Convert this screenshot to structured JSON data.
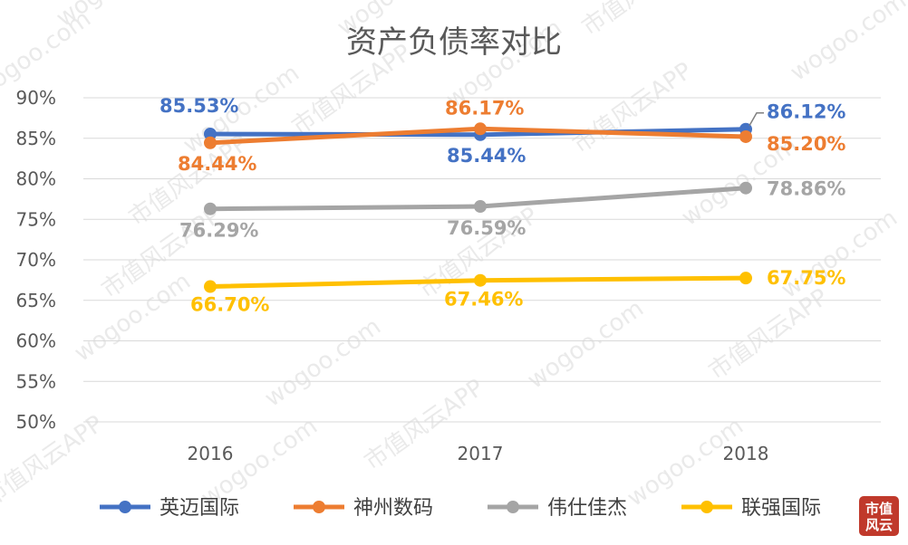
{
  "chart_data": {
    "type": "line",
    "title": "资产负债率对比",
    "categories": [
      "2016",
      "2017",
      "2018"
    ],
    "y_ticks": [
      "50%",
      "55%",
      "60%",
      "65%",
      "70%",
      "75%",
      "80%",
      "85%",
      "90%"
    ],
    "ylim": [
      50,
      90
    ],
    "unit": "%",
    "grid": true,
    "legend_position": "bottom",
    "series": [
      {
        "name": "英迈国际",
        "color": "#4472C4",
        "values": [
          85.53,
          85.44,
          86.12
        ],
        "labels": [
          "85.53%",
          "85.44%",
          "86.12%"
        ]
      },
      {
        "name": "神州数码",
        "color": "#ED7D31",
        "values": [
          84.44,
          86.17,
          85.2
        ],
        "labels": [
          "84.44%",
          "86.17%",
          "85.20%"
        ]
      },
      {
        "name": "伟仕佳杰",
        "color": "#A5A5A5",
        "values": [
          76.29,
          76.59,
          78.86
        ],
        "labels": [
          "76.29%",
          "76.59%",
          "78.86%"
        ]
      },
      {
        "name": "联强国际",
        "color": "#FFC000",
        "values": [
          66.7,
          67.46,
          67.75
        ],
        "labels": [
          "66.70%",
          "67.46%",
          "67.75%"
        ]
      }
    ]
  },
  "watermark": {
    "brand": "市值风云APP",
    "site": "wogoo.com"
  },
  "logo": {
    "text": "市值风云"
  }
}
